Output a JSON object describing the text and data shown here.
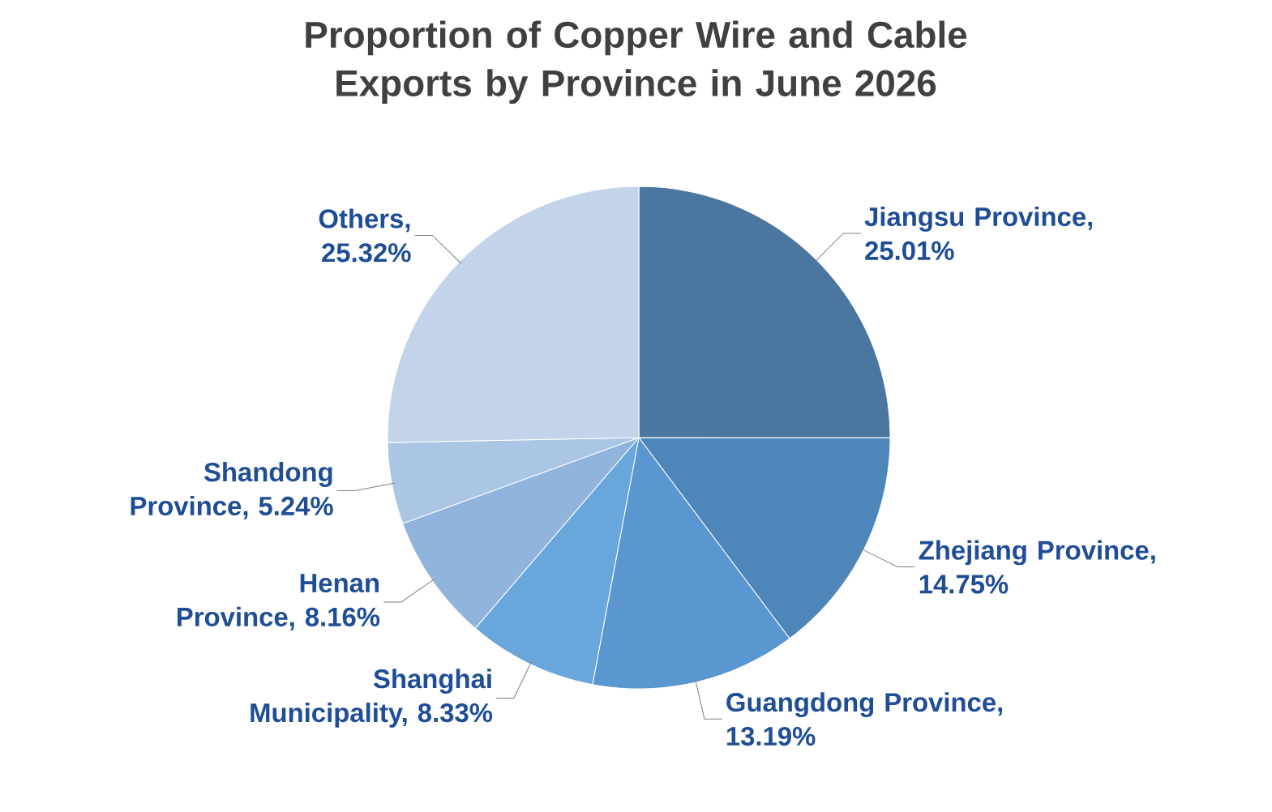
{
  "chart_data": {
    "type": "pie",
    "title": "Proportion of Copper Wire and Cable Exports by Province in June 2026",
    "values": [
      25.01,
      14.75,
      13.19,
      8.33,
      8.16,
      5.24,
      25.32
    ],
    "value_labels": [
      "Jiangsu Province, 25.01%",
      "Zhejiang Province, 14.75%",
      "Guangdong Province, 13.19%",
      "Shanghai Municipality, 8.33%",
      "Henan Province, 8.16%",
      "Shandong Province, 5.24%",
      "Others, 25.32%"
    ],
    "colors": [
      "#4a76a0",
      "#4f86b9",
      "#5a96cf",
      "#68a6dc",
      "#91b4dd",
      "#abc6e5",
      "#c3d4ea"
    ]
  }
}
